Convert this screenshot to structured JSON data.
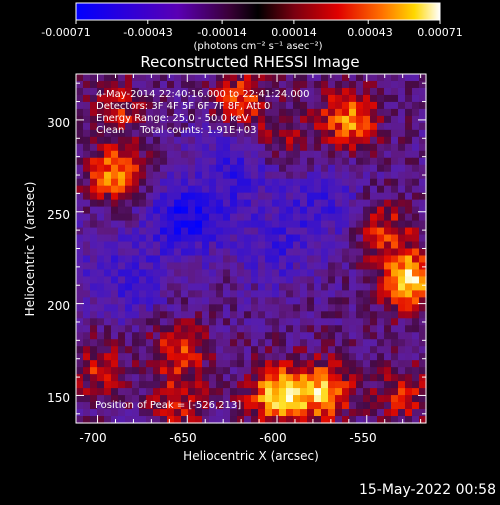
{
  "chart_data": {
    "type": "heatmap",
    "title": "Reconstructed RHESSI Image",
    "xlabel": "Heliocentric X (arcsec)",
    "ylabel": "Heliocentric Y (arcsec)",
    "xlim": [
      -712,
      -517
    ],
    "ylim": [
      135,
      325
    ],
    "xticks": [
      -700,
      -650,
      -600,
      -550
    ],
    "yticks": [
      150,
      200,
      250,
      300
    ],
    "grid": false,
    "colorbar": {
      "position": "top",
      "ticks": [
        "-0.00071",
        "-0.00043",
        "-0.00014",
        "0.00014",
        "0.00043",
        "0.00071"
      ],
      "range": [
        -0.00071,
        0.00071
      ],
      "unit_label": "(photons cm⁻² s⁻¹ asec⁻²)"
    },
    "annotations": [
      "4-May-2014 22:40:16.000 to 22:41:24.000",
      "Detectors: 3F 4F 5F 6F 7F 8F, Att 0",
      "Energy Range: 25.0 - 50.0 keV",
      "Clean     Total counts: 1.91E+03"
    ],
    "peak_label": "Position of Peak = [-526,213]",
    "peak": [
      -526,
      213
    ],
    "footer_timestamp": "15-May-2022 00:58",
    "hotspots": [
      {
        "x": -526,
        "y": 213,
        "v": 1.0
      },
      {
        "x": -600,
        "y": 150,
        "v": 0.92
      },
      {
        "x": -575,
        "y": 152,
        "v": 0.85
      },
      {
        "x": -690,
        "y": 270,
        "v": 0.75
      },
      {
        "x": -560,
        "y": 300,
        "v": 0.75
      },
      {
        "x": -620,
        "y": 310,
        "v": 0.6
      },
      {
        "x": -655,
        "y": 175,
        "v": 0.55
      },
      {
        "x": -700,
        "y": 165,
        "v": 0.45
      },
      {
        "x": -690,
        "y": 305,
        "v": 0.45
      },
      {
        "x": -540,
        "y": 240,
        "v": 0.5
      },
      {
        "x": -655,
        "y": 145,
        "v": 0.45
      },
      {
        "x": -530,
        "y": 150,
        "v": 0.45
      },
      {
        "x": -640,
        "y": 265,
        "v": 0.35
      },
      {
        "x": -595,
        "y": 290,
        "v": 0.35
      }
    ],
    "coldspots": [
      {
        "x": -650,
        "y": 248,
        "v": -0.7
      },
      {
        "x": -628,
        "y": 272,
        "v": -0.55
      },
      {
        "x": -575,
        "y": 255,
        "v": -0.4
      },
      {
        "x": -600,
        "y": 228,
        "v": -0.35
      },
      {
        "x": -680,
        "y": 210,
        "v": -0.3
      },
      {
        "x": -700,
        "y": 225,
        "v": -0.2
      }
    ]
  }
}
